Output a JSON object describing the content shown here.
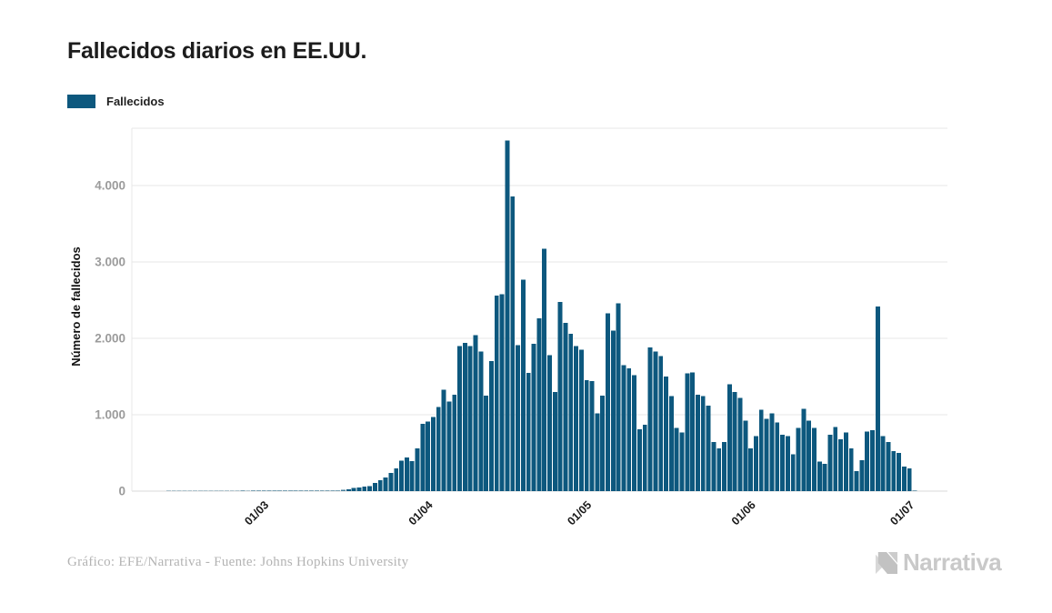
{
  "title": "Fallecidos diarios en EE.UU.",
  "legend": {
    "label": "Fallecidos",
    "swatch_color": "#0d587e"
  },
  "footer": {
    "credit": "Gráfico: EFE/Narrativa - Fuente: Johns Hopkins University"
  },
  "branding": {
    "logo_text": "Narrativa"
  },
  "colors": {
    "bar": "#0d587e",
    "grid": "#e7e7e7",
    "axis_line": "#d9d9d9",
    "y_tick_label": "#9b9b9b",
    "x_tick_label": "#1a1a1a",
    "axis_title": "#111111"
  },
  "chart_data": {
    "type": "bar",
    "title": "Fallecidos diarios en EE.UU.",
    "series_name": "Fallecidos",
    "xlabel": "",
    "ylabel": "Número de fallecidos",
    "ylim": [
      0,
      4750
    ],
    "grid": true,
    "legend_position": "top-left",
    "y_ticks": [
      {
        "value": 0,
        "label": "0"
      },
      {
        "value": 1000,
        "label": "1.000"
      },
      {
        "value": 2000,
        "label": "2.000"
      },
      {
        "value": 3000,
        "label": "3.000"
      },
      {
        "value": 4000,
        "label": "4.000"
      }
    ],
    "x_tick_labels": [
      "01/03",
      "01/04",
      "01/05",
      "01/06",
      "01/07"
    ],
    "dates": [
      "12/02",
      "13/02",
      "14/02",
      "15/02",
      "16/02",
      "17/02",
      "18/02",
      "19/02",
      "20/02",
      "21/02",
      "22/02",
      "23/02",
      "24/02",
      "25/02",
      "26/02",
      "27/02",
      "28/02",
      "29/02",
      "01/03",
      "02/03",
      "03/03",
      "04/03",
      "05/03",
      "06/03",
      "07/03",
      "08/03",
      "09/03",
      "10/03",
      "11/03",
      "12/03",
      "13/03",
      "14/03",
      "15/03",
      "16/03",
      "17/03",
      "18/03",
      "19/03",
      "20/03",
      "21/03",
      "22/03",
      "23/03",
      "24/03",
      "25/03",
      "26/03",
      "27/03",
      "28/03",
      "29/03",
      "30/03",
      "31/03",
      "01/04",
      "02/04",
      "03/04",
      "04/04",
      "05/04",
      "06/04",
      "07/04",
      "08/04",
      "09/04",
      "10/04",
      "11/04",
      "12/04",
      "13/04",
      "14/04",
      "15/04",
      "16/04",
      "17/04",
      "18/04",
      "19/04",
      "20/04",
      "21/04",
      "22/04",
      "23/04",
      "24/04",
      "25/04",
      "26/04",
      "27/04",
      "28/04",
      "29/04",
      "30/04",
      "01/05",
      "02/05",
      "03/05",
      "04/05",
      "05/05",
      "06/05",
      "07/05",
      "08/05",
      "09/05",
      "10/05",
      "11/05",
      "12/05",
      "13/05",
      "14/05",
      "15/05",
      "16/05",
      "17/05",
      "18/05",
      "19/05",
      "20/05",
      "21/05",
      "22/05",
      "23/05",
      "24/05",
      "25/05",
      "26/05",
      "27/05",
      "28/05",
      "29/05",
      "30/05",
      "31/05",
      "01/06",
      "02/06",
      "03/06",
      "04/06",
      "05/06",
      "06/06",
      "07/06",
      "08/06",
      "09/06",
      "10/06",
      "11/06",
      "12/06",
      "13/06",
      "14/06",
      "15/06",
      "16/06",
      "17/06",
      "18/06",
      "19/06",
      "20/06",
      "21/06",
      "22/06",
      "23/06",
      "24/06",
      "25/06",
      "26/06",
      "27/06",
      "28/06",
      "29/06",
      "30/06",
      "01/07",
      "02/07"
    ],
    "values": [
      0,
      0,
      0,
      0,
      0,
      0,
      0,
      0,
      0,
      0,
      0,
      0,
      0,
      0,
      1,
      0,
      1,
      1,
      1,
      4,
      2,
      3,
      2,
      3,
      4,
      3,
      4,
      6,
      7,
      5,
      9,
      8,
      11,
      18,
      25,
      41,
      49,
      57,
      65,
      110,
      140,
      180,
      240,
      300,
      400,
      440,
      390,
      560,
      880,
      910,
      970,
      1100,
      1330,
      1170,
      1260,
      1900,
      1940,
      1900,
      2040,
      1830,
      1250,
      1700,
      2560,
      2580,
      4591,
      3857,
      1910,
      2770,
      1550,
      1930,
      2260,
      3170,
      1780,
      1300,
      2478,
      2200,
      2060,
      1900,
      1850,
      1450,
      1440,
      1020,
      1250,
      2330,
      2100,
      2460,
      1650,
      1610,
      1520,
      810,
      870,
      1880,
      1830,
      1770,
      1500,
      1245,
      825,
      765,
      1540,
      1555,
      1260,
      1245,
      1120,
      645,
      560,
      645,
      1400,
      1300,
      1220,
      920,
      560,
      720,
      1065,
      945,
      1020,
      900,
      740,
      720,
      480,
      825,
      1080,
      920,
      825,
      385,
      360,
      740,
      840,
      680,
      765,
      560,
      263,
      405,
      780,
      800,
      2418,
      720,
      645,
      525,
      500,
      320,
      300,
      10
    ]
  }
}
